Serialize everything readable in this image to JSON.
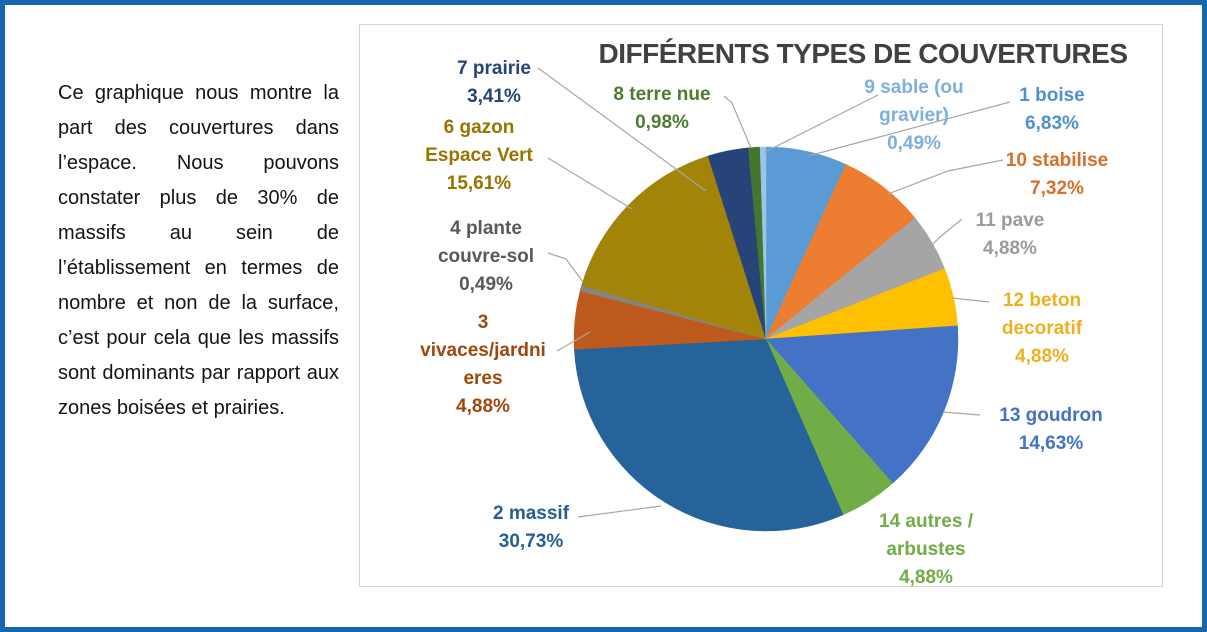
{
  "frame": {
    "border_color": "#1767B0"
  },
  "description": {
    "text": "Ce graphique nous montre la part des couvertures dans l’espace. Nous pouvons constater plus de 30% de massifs au sein de l’établissement en termes de nombre et non de la surface, c’est pour cela que les massifs sont dominants par rapport aux zones boisées et prairies."
  },
  "chart": {
    "title": "DIFFÉRENTS TYPES DE COUVERTURES",
    "title_color": "#414141",
    "leader_line_color": "#A6A6A6",
    "panel_border_color": "#D6D6D6"
  },
  "chart_data": {
    "type": "pie",
    "title": "DIFFÉRENTS TYPES DE COUVERTURES",
    "start_angle_deg": 0,
    "direction": "clockwise",
    "order": "alphabetical by category name",
    "legend": "none (outside data labels with leader lines)",
    "slices": [
      {
        "name": "1 boise",
        "value": 6.83,
        "pct_label": "6,83%",
        "color": "#5B9BD5",
        "label_color": "#4D92CF",
        "label_lines": [
          "1 boise",
          "6,83%"
        ]
      },
      {
        "name": "10 stabilise",
        "value": 7.32,
        "pct_label": "7,32%",
        "color": "#ED7D31",
        "label_color": "#D86E27",
        "label_lines": [
          "10 stabilise",
          "7,32%"
        ]
      },
      {
        "name": "11 pave",
        "value": 4.88,
        "pct_label": "4,88%",
        "color": "#A5A5A5",
        "label_color": "#9B9B9B",
        "label_lines": [
          "11 pave",
          "4,88%"
        ]
      },
      {
        "name": "12 beton decoratif",
        "value": 4.88,
        "pct_label": "4,88%",
        "color": "#FFC000",
        "label_color": "#EDB120",
        "label_lines": [
          "12 beton",
          "decoratif",
          "4,88%"
        ]
      },
      {
        "name": "13 goudron",
        "value": 14.63,
        "pct_label": "14,63%",
        "color": "#4472C4",
        "label_color": "#4472C4",
        "label_lines": [
          "13 goudron",
          "14,63%"
        ]
      },
      {
        "name": "14 autres / arbustes",
        "value": 4.88,
        "pct_label": "4,88%",
        "color": "#70AD47",
        "label_color": "#70AD47",
        "label_lines": [
          "14 autres /",
          "arbustes",
          "4,88%"
        ]
      },
      {
        "name": "2 massif",
        "value": 30.73,
        "pct_label": "30,73%",
        "color": "#26639B",
        "label_color": "#255E91",
        "label_lines": [
          "2 massif",
          "30,73%"
        ]
      },
      {
        "name": "3 vivaces/jardnieres",
        "value": 4.88,
        "pct_label": "4,88%",
        "color": "#BE5A1D",
        "label_color": "#9E480E",
        "label_lines": [
          "3",
          "vivaces/jardni",
          "eres",
          "4,88%"
        ]
      },
      {
        "name": "4 plante couvre-sol",
        "value": 0.49,
        "pct_label": "0,49%",
        "color": "#85857A",
        "label_color": "#595959",
        "label_lines": [
          "4 plante",
          "couvre-sol",
          "0,49%"
        ]
      },
      {
        "name": "6 gazon Espace Vert",
        "value": 15.61,
        "pct_label": "15,61%",
        "color": "#A28409",
        "label_color": "#997300",
        "label_lines": [
          "6 gazon",
          "Espace Vert",
          "15,61%"
        ]
      },
      {
        "name": "7 prairie",
        "value": 3.41,
        "pct_label": "3,41%",
        "color": "#264478",
        "label_color": "#264478",
        "label_lines": [
          "7 prairie",
          "3,41%"
        ]
      },
      {
        "name": "8 terre nue",
        "value": 0.98,
        "pct_label": "0,98%",
        "color": "#45762F",
        "label_color": "#4E7B30",
        "label_lines": [
          "8 terre nue",
          "0,98%"
        ]
      },
      {
        "name": "9 sable (ou gravier)",
        "value": 0.49,
        "pct_label": "0,49%",
        "color": "#9DC3E6",
        "label_color": "#7FAFDC",
        "label_lines": [
          "9 sable (ou",
          "gravier)",
          "0,49%"
        ]
      }
    ]
  }
}
